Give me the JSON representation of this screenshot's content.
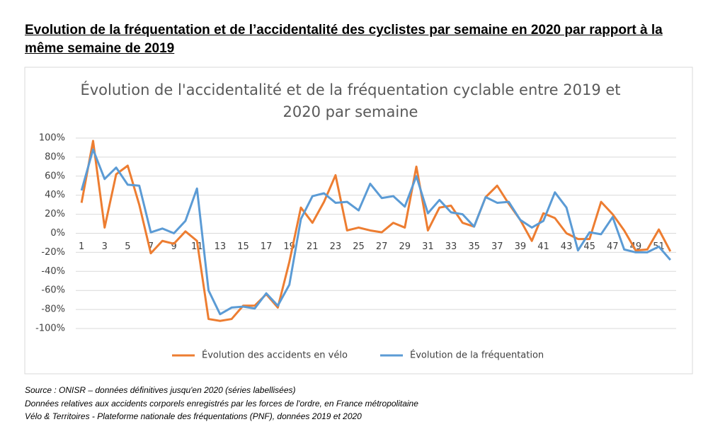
{
  "heading": "Evolution de la fréquentation et de l’accidentalité des cyclistes par semaine en 2020 par rapport à la même semaine de 2019",
  "source": [
    "Source : ONISR – données définitives jusqu'en 2020 (séries labellisées)",
    "Données relatives aux accidents corporels enregistrés par les forces de l'ordre, en France métropolitaine",
    "Vélo & Territoires - Plateforme nationale des fréquentations (PNF), données 2019 et 2020"
  ],
  "chart_data": {
    "type": "line",
    "title": "Évolution de l'accidentalité et de la fréquentation cyclable entre 2019 et 2020 par semaine",
    "categories": [
      1,
      null,
      3,
      null,
      5,
      null,
      7,
      null,
      9,
      null,
      11,
      null,
      13,
      null,
      15,
      null,
      17,
      null,
      19,
      null,
      21,
      null,
      23,
      null,
      25,
      null,
      27,
      null,
      29,
      null,
      31,
      null,
      33,
      null,
      35,
      null,
      37,
      null,
      39,
      null,
      41,
      null,
      43,
      null,
      45,
      null,
      47,
      null,
      49,
      null,
      51,
      null
    ],
    "series": [
      {
        "name": "Évolution des accidents en vélo",
        "color": "#ed7d31",
        "values": [
          32,
          97,
          6,
          62,
          71,
          30,
          -21,
          -8,
          -11,
          2,
          -8,
          -90,
          -92,
          -90,
          -76,
          -76,
          -64,
          -78,
          -30,
          27,
          11,
          33,
          61,
          3,
          6,
          3,
          1,
          11,
          6,
          70,
          3,
          27,
          29,
          11,
          7,
          38,
          50,
          31,
          14,
          -8,
          21,
          16,
          0,
          -6,
          -6,
          33,
          20,
          3,
          -18,
          -17,
          4,
          -19
        ]
      },
      {
        "name": "Évolution de la fréquentation",
        "color": "#5b9bd5",
        "values": [
          45,
          88,
          57,
          69,
          51,
          50,
          1,
          5,
          0,
          13,
          47,
          -60,
          -85,
          -78,
          -77,
          -79,
          -63,
          -76,
          -54,
          15,
          39,
          42,
          32,
          33,
          24,
          52,
          37,
          39,
          28,
          60,
          21,
          35,
          22,
          20,
          7,
          38,
          32,
          33,
          14,
          6,
          13,
          43,
          27,
          -18,
          1,
          -1,
          17,
          -17,
          -20,
          -20,
          -14,
          -28
        ]
      }
    ],
    "ylim": [
      -100,
      100
    ],
    "yticks": [
      {
        "value": -100,
        "label": "-100%"
      },
      {
        "value": -80,
        "label": "-80%"
      },
      {
        "value": -60,
        "label": "-60%"
      },
      {
        "value": -40,
        "label": "-40%"
      },
      {
        "value": -20,
        "label": "-20%"
      },
      {
        "value": 0,
        "label": "0%"
      },
      {
        "value": 20,
        "label": "20%"
      },
      {
        "value": 40,
        "label": "40%"
      },
      {
        "value": 60,
        "label": "60%"
      },
      {
        "value": 80,
        "label": "80%"
      },
      {
        "value": 100,
        "label": "100%"
      }
    ],
    "grid": true,
    "legend": "bottom"
  }
}
